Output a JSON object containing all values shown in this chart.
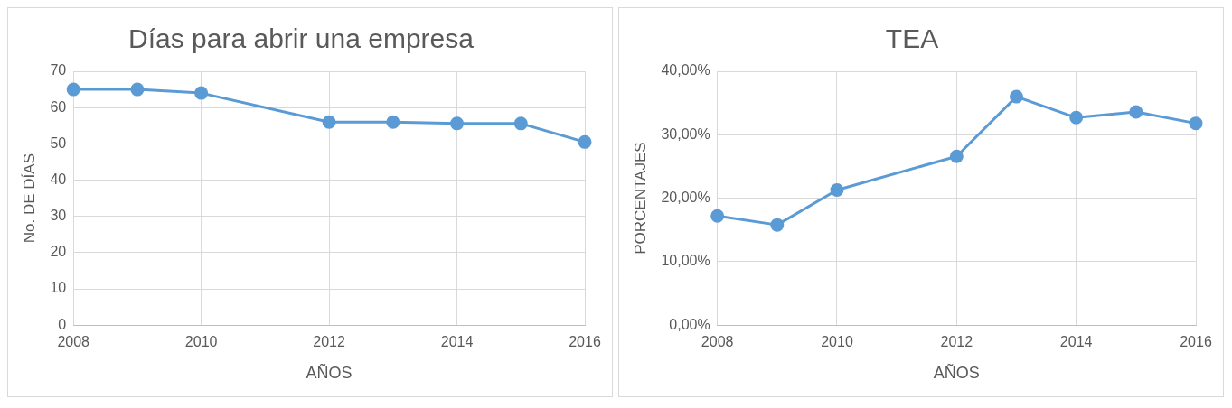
{
  "chart_data": [
    {
      "type": "line",
      "title": "Días para abrir una empresa",
      "xlabel": "AÑOS",
      "ylabel": "No. DE DÍAS",
      "x": [
        2008,
        2009,
        2010,
        2012,
        2013,
        2014,
        2015,
        2016
      ],
      "series": [
        {
          "color": "#5b9bd5",
          "values": [
            65,
            65,
            64,
            56,
            56,
            55.6,
            55.6,
            50.5
          ]
        }
      ],
      "xlim": [
        2008,
        2016
      ],
      "xticks": [
        2008,
        2010,
        2012,
        2014,
        2016
      ],
      "ylim": [
        0,
        70
      ],
      "yticks": [
        0,
        10,
        20,
        30,
        40,
        50,
        60,
        70
      ],
      "grid": true,
      "legend": false,
      "marker": "circle",
      "line_style": "solid"
    },
    {
      "type": "line",
      "title": "TEA",
      "xlabel": "AÑOS",
      "ylabel": "PORCENTAJES",
      "x": [
        2008,
        2009,
        2010,
        2012,
        2013,
        2014,
        2015,
        2016
      ],
      "series": [
        {
          "color": "#5b9bd5",
          "values": [
            17.2,
            15.8,
            21.3,
            26.6,
            36.0,
            32.7,
            33.6,
            31.8
          ]
        }
      ],
      "xlim": [
        2008,
        2016
      ],
      "xticks": [
        2008,
        2010,
        2012,
        2014,
        2016
      ],
      "ylim": [
        0,
        40
      ],
      "yticks": [
        {
          "value": 0,
          "label": "0,00%"
        },
        {
          "value": 10,
          "label": "10,00%"
        },
        {
          "value": 20,
          "label": "20,00%"
        },
        {
          "value": 30,
          "label": "30,00%"
        },
        {
          "value": 40,
          "label": "40,00%"
        }
      ],
      "grid": true,
      "legend": false,
      "marker": "circle",
      "line_style": "solid"
    }
  ]
}
